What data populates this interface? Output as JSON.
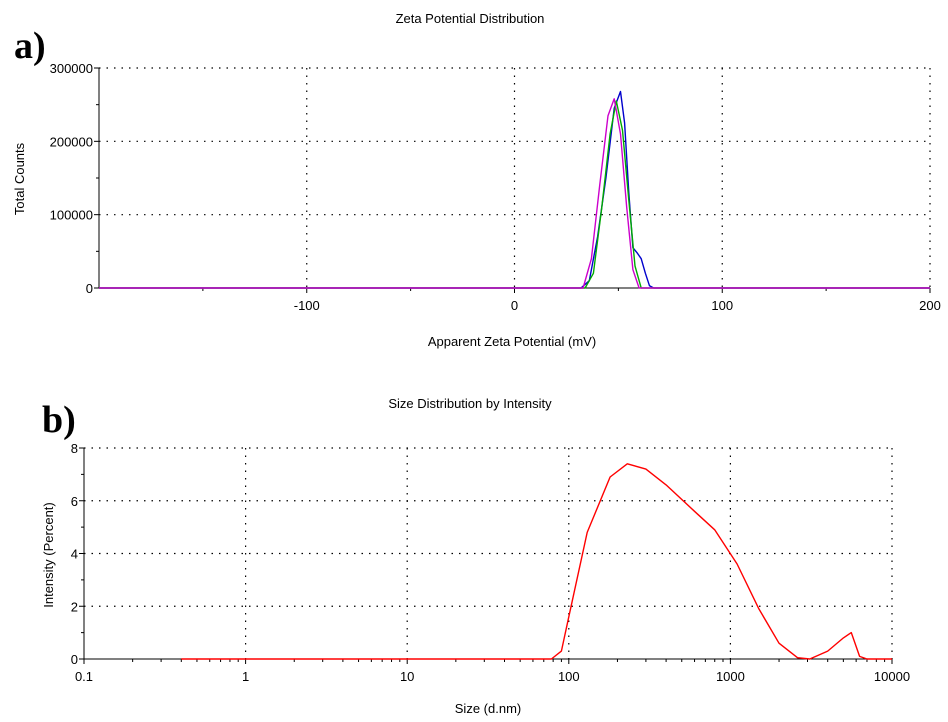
{
  "panel_labels": {
    "a": "a)",
    "b": "b)"
  },
  "chart_data": [
    {
      "type": "line",
      "panel": "a)",
      "title": "Zeta Potential Distribution",
      "xlabel": "Apparent Zeta Potential (mV)",
      "ylabel": "Total Counts",
      "xlim": [
        -200,
        200
      ],
      "ylim": [
        0,
        300000
      ],
      "x_ticks": [
        -100,
        0,
        100,
        200
      ],
      "x_tick_labels": [
        "-100",
        "0",
        "100",
        "200"
      ],
      "y_ticks": [
        0,
        100000,
        200000,
        300000
      ],
      "y_tick_labels": [
        "0",
        "100000",
        "200000",
        "300000"
      ],
      "grid": true,
      "series": [
        {
          "color": "#0000cc",
          "x": [
            -200,
            32,
            36,
            40,
            44,
            48,
            51,
            53,
            55,
            57,
            59,
            61,
            63,
            65,
            67,
            200
          ],
          "y": [
            0,
            0,
            10000,
            70000,
            150000,
            245000,
            268000,
            225000,
            130000,
            55000,
            48000,
            40000,
            20000,
            3000,
            0,
            0
          ]
        },
        {
          "color": "#00aa00",
          "x": [
            -200,
            34,
            38,
            42,
            46,
            49,
            52,
            55,
            58,
            61,
            200
          ],
          "y": [
            0,
            0,
            20000,
            110000,
            210000,
            255000,
            215000,
            120000,
            30000,
            0,
            0
          ]
        },
        {
          "color": "#cc00cc",
          "x": [
            -200,
            33,
            37,
            41,
            45,
            48,
            51,
            54,
            57,
            60,
            200
          ],
          "y": [
            0,
            0,
            40000,
            140000,
            235000,
            258000,
            210000,
            110000,
            25000,
            0,
            0
          ]
        }
      ]
    },
    {
      "type": "line",
      "panel": "b)",
      "title": "Size Distribution by Intensity",
      "xlabel": "Size (d.nm)",
      "ylabel": "Intensity (Percent)",
      "x_scale": "log",
      "xlim": [
        0.1,
        10000
      ],
      "ylim": [
        0,
        8
      ],
      "x_ticks": [
        0.1,
        1,
        10,
        100,
        1000,
        10000
      ],
      "x_tick_labels": [
        "0.1",
        "1",
        "10",
        "100",
        "1000",
        "10000"
      ],
      "y_ticks": [
        0,
        2,
        4,
        6,
        8
      ],
      "y_tick_labels": [
        "0",
        "2",
        "4",
        "6",
        "8"
      ],
      "grid": true,
      "series": [
        {
          "color": "#ff0000",
          "x": [
            0.4,
            78,
            90,
            100,
            130,
            180,
            230,
            300,
            400,
            600,
            800,
            1100,
            1500,
            2000,
            2600,
            3100,
            4000,
            5000,
            5600,
            6300,
            7000,
            10000
          ],
          "y": [
            0,
            0,
            0.3,
            1.6,
            4.8,
            6.9,
            7.4,
            7.2,
            6.6,
            5.6,
            4.9,
            3.6,
            1.9,
            0.6,
            0.05,
            0,
            0.3,
            0.8,
            1.0,
            0.1,
            0,
            0
          ]
        }
      ]
    }
  ]
}
